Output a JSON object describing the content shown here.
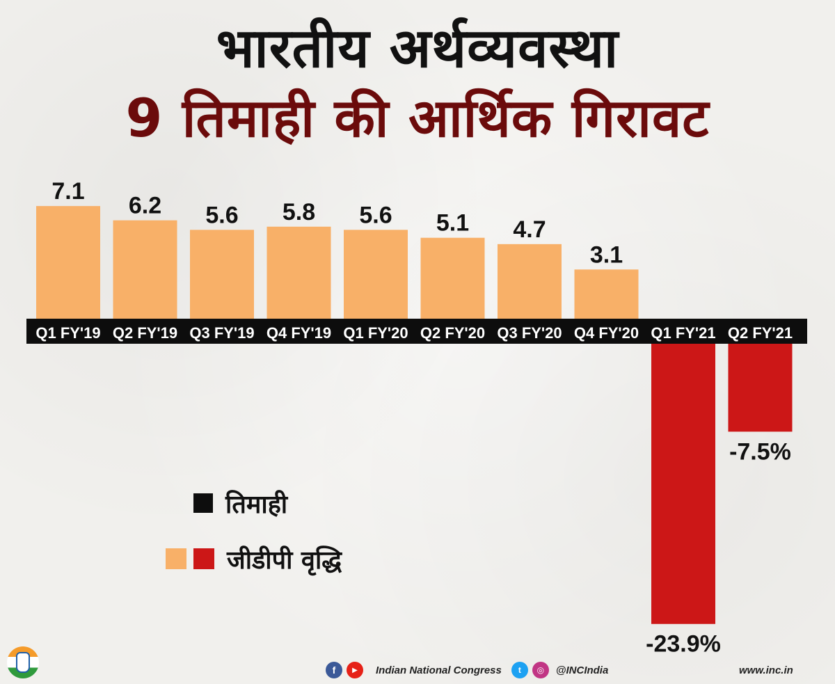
{
  "title": "भारतीय अर्थव्यवस्था",
  "subtitle": "9 तिमाही की आर्थिक गिरावट",
  "legend": {
    "quarter_label": "तिमाही",
    "gdp_label": "जीडीपी वृद्धि"
  },
  "colors": {
    "positive": "#f8b068",
    "negative": "#cc1717",
    "axis_band": "#0d0d0d",
    "subtitle": "#6b0b0b"
  },
  "footer": {
    "org": "Indian National Congress",
    "handle": "@INCIndia",
    "website": "www.inc.in"
  },
  "chart_data": {
    "type": "bar",
    "title": "9 तिमाही की आर्थिक गिरावट",
    "xlabel": "तिमाही",
    "ylabel": "जीडीपी वृद्धि",
    "categories": [
      "Q1 FY'19",
      "Q2 FY'19",
      "Q3 FY'19",
      "Q4 FY'19",
      "Q1 FY'20",
      "Q2 FY'20",
      "Q3 FY'20",
      "Q4 FY'20",
      "Q1 FY'21",
      "Q2 FY'21"
    ],
    "values": [
      7.1,
      6.2,
      5.6,
      5.8,
      5.6,
      5.1,
      4.7,
      3.1,
      -23.9,
      -7.5
    ],
    "data_labels": [
      "7.1",
      "6.2",
      "5.6",
      "5.8",
      "5.6",
      "5.1",
      "4.7",
      "3.1",
      "-23.9%",
      "-7.5%"
    ],
    "grid": false,
    "legend_position": "left-middle"
  }
}
